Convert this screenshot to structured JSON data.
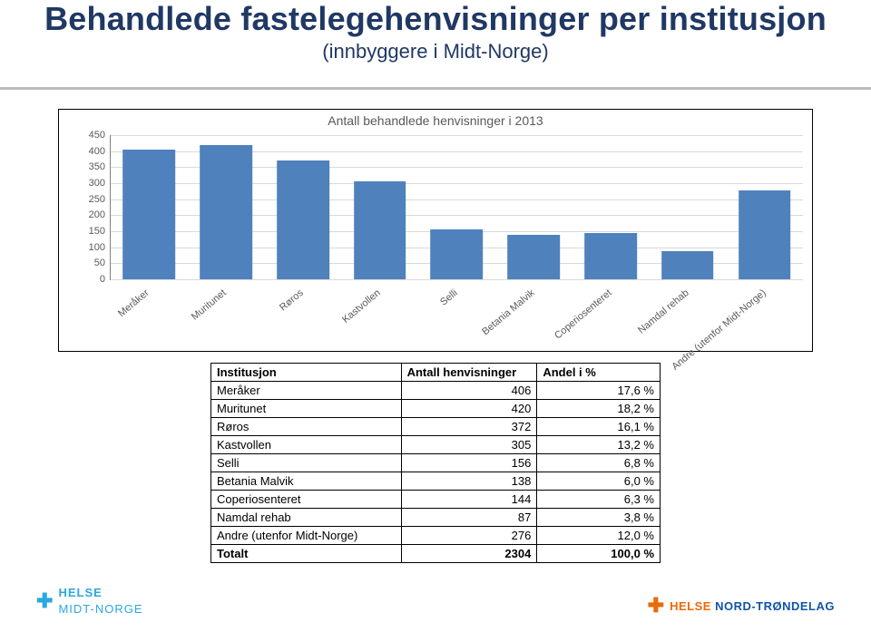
{
  "title": "Behandlede fastelegehenvisninger per institusjon",
  "subtitle": "(innbyggere i Midt-Norge)",
  "colors": {
    "title": "#203864",
    "bar": "#4f81bd",
    "grid": "#d9d9d9",
    "axis": "#808080",
    "text_muted": "#595959",
    "background": "#ffffff",
    "logo_blue": "#2aa8df",
    "logo_orange": "#eb6a0a",
    "logo_navy": "#1155aa"
  },
  "chart": {
    "type": "bar",
    "title": "Antall behandlede henvisninger i 2013",
    "title_fontsize": 14,
    "categories": [
      "Meråker",
      "Muritunet",
      "Røros",
      "Kastvollen",
      "Selli",
      "Betania Malvik",
      "Coperiosenteret",
      "Namdal rehab",
      "Andre (utenfor Midt-Norge)"
    ],
    "values": [
      406,
      420,
      372,
      305,
      156,
      138,
      144,
      87,
      276
    ],
    "bar_color": "#4f81bd",
    "ylim": [
      0,
      450
    ],
    "ytick_step": 50,
    "bar_width": 0.68,
    "grid_color": "#d9d9d9",
    "axis_color": "#808080",
    "background_color": "#ffffff",
    "label_fontsize": 11,
    "x_label_rotation": -40
  },
  "table": {
    "columns": [
      "Institusjon",
      "Antall henvisninger",
      "Andel i %"
    ],
    "rows": [
      [
        "Meråker",
        "406",
        "17,6 %"
      ],
      [
        "Muritunet",
        "420",
        "18,2 %"
      ],
      [
        "Røros",
        "372",
        "16,1 %"
      ],
      [
        "Kastvollen",
        "305",
        "13,2 %"
      ],
      [
        "Selli",
        "156",
        "6,8 %"
      ],
      [
        "Betania Malvik",
        "138",
        "6,0 %"
      ],
      [
        "Coperiosenteret",
        "144",
        "6,3 %"
      ],
      [
        "Namdal rehab",
        "87",
        "3,8 %"
      ],
      [
        "Andre (utenfor Midt-Norge)",
        "276",
        "12,0 %"
      ]
    ],
    "total_row": [
      "Totalt",
      "2304",
      "100,0 %"
    ]
  },
  "logos": {
    "left_brand": "HELSE",
    "left_sub": "MIDT-NORGE",
    "right_brand": "HELSE",
    "right_rest": "NORD-TRØNDELAG"
  }
}
